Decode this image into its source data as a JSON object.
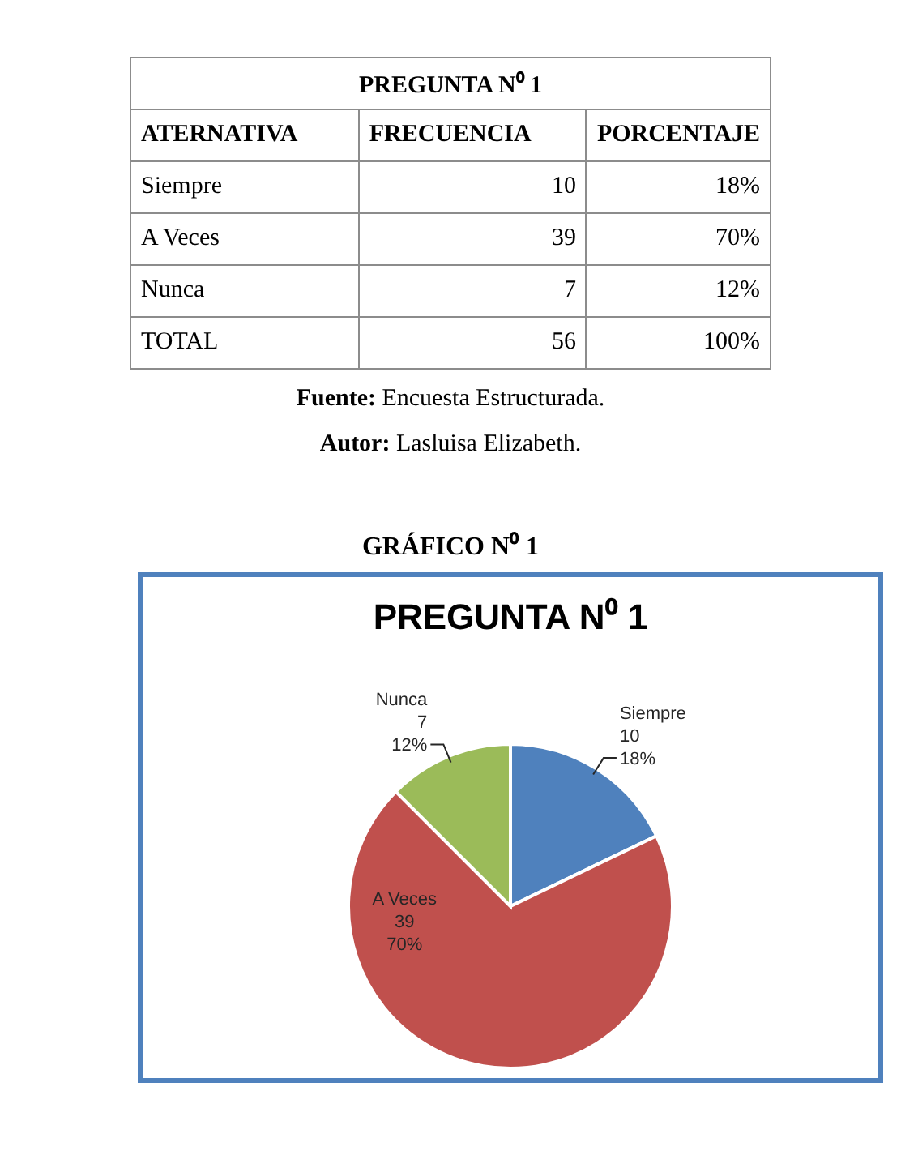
{
  "chart_data": [
    {
      "type": "other",
      "title": "PREGUNTA N⁰ 1",
      "annotations": [
        "ATERNATIVA",
        "FRECUENCIA",
        "PORCENTAJE",
        "Siempre",
        "10",
        "18%",
        "A Veces",
        "39",
        "70%",
        "Nunca",
        "7",
        "12%",
        "TOTAL",
        "56",
        "100%",
        "Fuente: Encuesta Estructurada.",
        "Autor: Lasluisa Elizabeth."
      ]
    },
    {
      "type": "pie",
      "title": "PREGUNTA N⁰ 1",
      "categories": [
        "Siempre",
        "A Veces",
        "Nunca"
      ],
      "values": [
        10,
        39,
        7
      ],
      "colors": [
        "#4f81bd",
        "#c0504d",
        "#9bbb59"
      ],
      "data_labels": true,
      "annotations": [
        "GRÁFICO N⁰ 1",
        {
          "text": "18%",
          "x": "Siempre"
        },
        {
          "text": "70%",
          "x": "A Veces"
        },
        {
          "text": "12%",
          "x": "Nunca"
        }
      ]
    }
  ]
}
